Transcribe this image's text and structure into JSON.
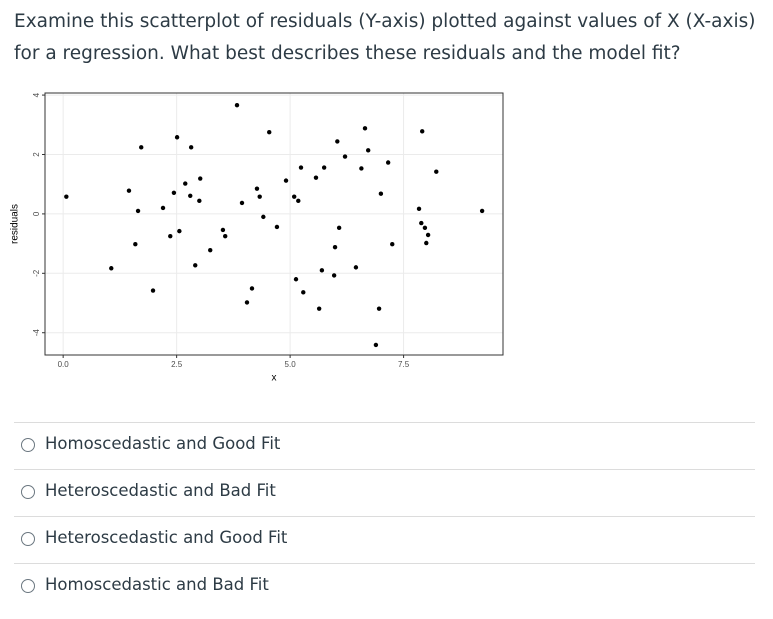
{
  "question": "Examine this scatterplot of residuals (Y-axis) plotted against values of X (X-axis) for a regression. What best describes these residuals and the model fit?",
  "chart_data": {
    "type": "scatter",
    "xlabel": "x",
    "ylabel": "residuals",
    "color": "#000000",
    "grid": true,
    "x": [
      0.07,
      1.06,
      1.45,
      1.59,
      1.65,
      1.72,
      1.98,
      2.2,
      2.36,
      2.44,
      2.51,
      2.56,
      2.69,
      2.8,
      2.82,
      2.91,
      3.0,
      3.02,
      3.24,
      3.52,
      3.57,
      3.83,
      3.94,
      4.05,
      4.16,
      4.27,
      4.33,
      4.41,
      4.54,
      4.71,
      4.91,
      5.09,
      5.13,
      5.18,
      5.24,
      5.29,
      5.57,
      5.64,
      5.7,
      5.75,
      5.97,
      6.04,
      5.99,
      6.08,
      6.21,
      6.45,
      6.57,
      6.65,
      6.72,
      6.89,
      6.96,
      7.0,
      7.16,
      7.25,
      7.84,
      7.89,
      7.91,
      7.97,
      8.04,
      8.0,
      8.22,
      9.23
    ],
    "values": [
      0.58,
      -1.83,
      0.78,
      -1.02,
      0.1,
      2.24,
      -2.58,
      0.2,
      -0.75,
      0.71,
      2.58,
      -0.58,
      1.02,
      0.61,
      2.24,
      -1.73,
      0.44,
      1.19,
      -1.22,
      -0.54,
      -0.75,
      3.66,
      0.37,
      -2.98,
      -2.51,
      0.85,
      0.58,
      -0.1,
      2.75,
      -0.44,
      1.12,
      0.58,
      -2.2,
      0.44,
      1.56,
      -2.64,
      1.22,
      -3.19,
      -1.9,
      1.56,
      -2.07,
      2.44,
      -1.12,
      -0.47,
      1.93,
      -1.8,
      1.53,
      2.88,
      2.14,
      -4.41,
      -3.19,
      0.68,
      1.73,
      -1.02,
      0.17,
      -0.31,
      2.78,
      -0.47,
      -0.71,
      -0.98,
      1.42,
      0.1
    ],
    "xlim": [
      -0.4,
      9.69
    ],
    "ylim": [
      -4.75,
      4.07
    ],
    "xticks": [
      {
        "value": 0,
        "label": "0.0"
      },
      2.5,
      {
        "value": 5,
        "label": "5.0"
      },
      7.5
    ],
    "yticks": [
      -4,
      -2,
      0,
      2,
      4
    ]
  },
  "options": [
    "Homoscedastic and Good Fit",
    "Heteroscedastic and Bad Fit",
    "Heteroscedastic and Good Fit",
    "Homoscedastic and Bad Fit"
  ]
}
